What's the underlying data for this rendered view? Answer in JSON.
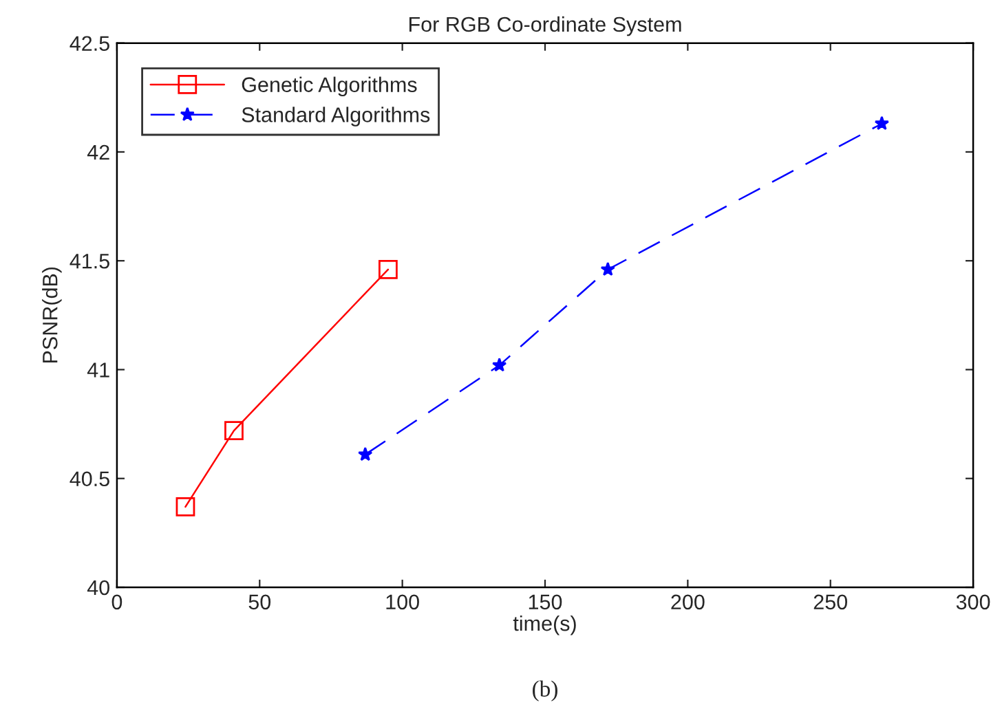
{
  "chart_data": {
    "type": "line",
    "title": "For RGB Co-ordinate System",
    "xlabel": "time(s)",
    "ylabel": "PSNR(dB)",
    "series": [
      {
        "name": "Genetic Algorithms",
        "color": "#ff0000",
        "x": [
          24,
          41,
          95
        ],
        "values": [
          40.37,
          40.72,
          41.46
        ],
        "marker": "square",
        "line_style": "solid"
      },
      {
        "name": "Standard Algorithms",
        "color": "#0000ff",
        "x": [
          87,
          134,
          172,
          268
        ],
        "values": [
          40.61,
          41.02,
          41.46,
          42.13
        ],
        "marker": "star",
        "line_style": "dashed"
      }
    ],
    "xlim": [
      0,
      300
    ],
    "xticks": [
      0,
      50,
      100,
      150,
      200,
      250,
      300
    ],
    "ylim": [
      40,
      42.5
    ],
    "yticks": [
      40,
      {
        "value": 40.5,
        "label": "40.5"
      },
      41,
      {
        "value": 41.5,
        "label": "41.5"
      },
      42,
      {
        "value": 42.5,
        "label": "42.5"
      }
    ],
    "grid": false,
    "legend": "top left",
    "annotations": [
      "(b)"
    ]
  }
}
